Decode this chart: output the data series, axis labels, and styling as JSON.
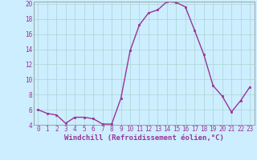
{
  "x": [
    0,
    1,
    2,
    3,
    4,
    5,
    6,
    7,
    8,
    9,
    10,
    11,
    12,
    13,
    14,
    15,
    16,
    17,
    18,
    19,
    20,
    21,
    22,
    23
  ],
  "y": [
    6.0,
    5.5,
    5.3,
    4.2,
    5.0,
    5.0,
    4.8,
    4.1,
    4.1,
    7.5,
    13.8,
    17.2,
    18.8,
    19.2,
    20.3,
    20.2,
    19.6,
    16.5,
    13.3,
    9.2,
    7.8,
    5.7,
    7.2,
    9.0
  ],
  "line_color": "#993399",
  "marker": "s",
  "marker_size": 2,
  "linewidth": 1.0,
  "xlabel": "Windchill (Refroidissement éolien,°C)",
  "xlabel_fontsize": 6.5,
  "ylim": [
    4,
    20
  ],
  "xlim_min": -0.5,
  "xlim_max": 23.5,
  "yticks": [
    4,
    6,
    8,
    10,
    12,
    14,
    16,
    18,
    20
  ],
  "xticks": [
    0,
    1,
    2,
    3,
    4,
    5,
    6,
    7,
    8,
    9,
    10,
    11,
    12,
    13,
    14,
    15,
    16,
    17,
    18,
    19,
    20,
    21,
    22,
    23
  ],
  "tick_fontsize": 5.5,
  "grid_color": "#b0d8d8",
  "background_color": "#cceeff",
  "spine_color": "#888888"
}
